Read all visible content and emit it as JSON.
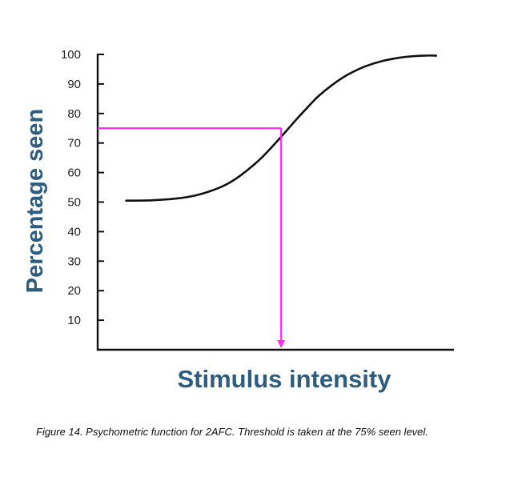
{
  "chart_data": {
    "type": "line",
    "title": "",
    "xlabel": "Stimulus intensity",
    "ylabel": "Percentage seen",
    "ylim": [
      0,
      100
    ],
    "xlim": [
      0,
      100
    ],
    "y_ticks": [
      10,
      20,
      30,
      40,
      50,
      60,
      70,
      80,
      90,
      100
    ],
    "x_ticks": [],
    "grid": false,
    "series": [
      {
        "x": [
          8,
          15,
          22,
          28,
          34,
          38,
          42,
          46,
          50,
          53,
          56,
          59,
          62,
          66,
          70,
          75,
          80,
          86,
          92,
          95
        ],
        "y": [
          50.5,
          50.6,
          51.2,
          52.4,
          54.8,
          57.3,
          60.8,
          65.0,
          70.1,
          74.2,
          78.3,
          82.2,
          85.9,
          89.8,
          93.0,
          95.9,
          97.8,
          99.1,
          99.6,
          99.6
        ]
      }
    ],
    "threshold": {
      "level": 75,
      "x": 51.5
    },
    "colors": {
      "curve": "#111111",
      "threshold": "#ff2bf0",
      "axis": "#111111",
      "axis_title": "#2e5c7e"
    }
  },
  "caption": "Figure 14. Psychometric function for 2AFC. Threshold is taken at the 75% seen level."
}
